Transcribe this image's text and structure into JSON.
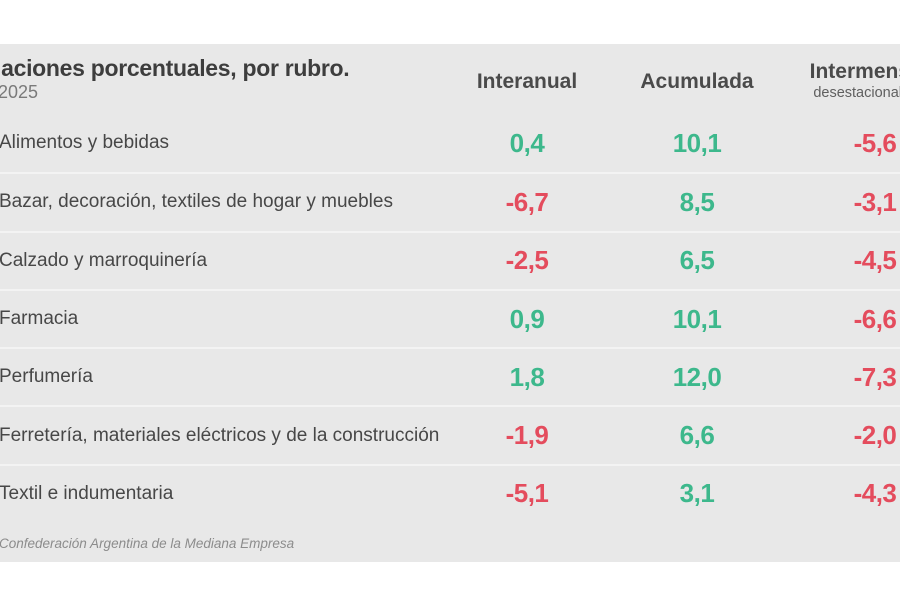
{
  "header": {
    "title": "iaciones porcentuales, por rubro.",
    "subtitle": "2025",
    "col1_label": "Interanual",
    "col2_label": "Acumulada",
    "col3_label": "Intermensual",
    "col3_sublabel": "desestacionalizada"
  },
  "table": {
    "rows": [
      {
        "label": "Alimentos y bebidas",
        "interanual": "0,4",
        "acumulada": "10,1",
        "intermensual": "-5,6"
      },
      {
        "label": "Bazar, decoración, textiles de hogar y muebles",
        "interanual": "-6,7",
        "acumulada": "8,5",
        "intermensual": "-3,1"
      },
      {
        "label": "Calzado y marroquinería",
        "interanual": "-2,5",
        "acumulada": "6,5",
        "intermensual": "-4,5"
      },
      {
        "label": "Farmacia",
        "interanual": "0,9",
        "acumulada": "10,1",
        "intermensual": "-6,6"
      },
      {
        "label": "Perfumería",
        "interanual": "1,8",
        "acumulada": "12,0",
        "intermensual": "-7,3"
      },
      {
        "label": "Ferretería, materiales eléctricos y de la construcción",
        "interanual": "-1,9",
        "acumulada": "6,6",
        "intermensual": "-2,0"
      },
      {
        "label": "Textil e indumentaria",
        "interanual": "-5,1",
        "acumulada": "3,1",
        "intermensual": "-4,3"
      }
    ]
  },
  "footer": {
    "source": "Confederación Argentina de la Mediana Empresa"
  },
  "colors": {
    "positive": "#3db88c",
    "negative": "#e44c5d",
    "band_background": "#e8e8e8"
  },
  "chart_data": {
    "type": "table",
    "title": "iaciones porcentuales, por rubro.",
    "subtitle": "2025",
    "columns": [
      "Interanual",
      "Acumulada",
      "Intermensual desestacionalizada"
    ],
    "categories": [
      "Alimentos y bebidas",
      "Bazar, decoración, textiles de hogar y muebles",
      "Calzado y marroquinería",
      "Farmacia",
      "Perfumería",
      "Ferretería, materiales eléctricos y de la construcción",
      "Textil e indumentaria"
    ],
    "series": [
      {
        "name": "Interanual",
        "values": [
          0.4,
          -6.7,
          -2.5,
          0.9,
          1.8,
          -1.9,
          -5.1
        ]
      },
      {
        "name": "Acumulada",
        "values": [
          10.1,
          8.5,
          6.5,
          10.1,
          12.0,
          6.6,
          3.1
        ]
      },
      {
        "name": "Intermensual desestacionalizada",
        "values": [
          -5.6,
          -3.1,
          -4.5,
          -6.6,
          -7.3,
          -2.0,
          -4.3
        ]
      }
    ],
    "value_color_rule": "negative red, positive green",
    "source": "Confederación Argentina de la Mediana Empresa"
  }
}
